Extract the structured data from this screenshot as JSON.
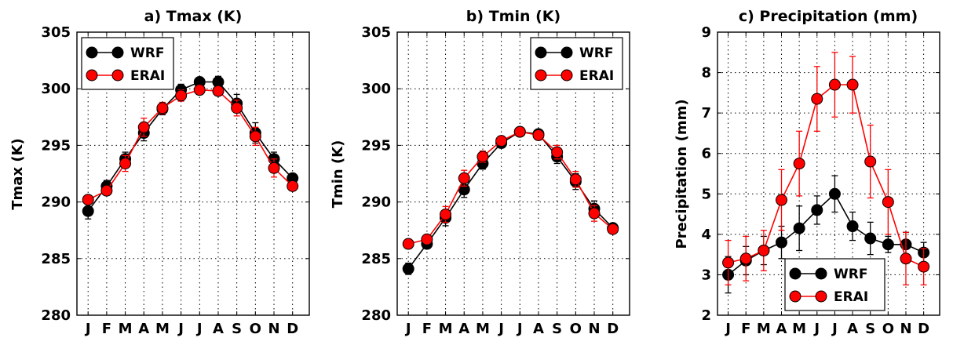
{
  "chart_data": [
    {
      "type": "line",
      "title": "a) Tmax (K)",
      "xlabel": "",
      "ylabel": "Tmax (K)",
      "categories": [
        "J",
        "F",
        "M",
        "A",
        "M",
        "J",
        "J",
        "A",
        "S",
        "O",
        "N",
        "D"
      ],
      "ylim": [
        280,
        305
      ],
      "yticks": [
        280,
        285,
        290,
        295,
        300,
        305
      ],
      "grid": true,
      "legend": "top-left",
      "series": [
        {
          "name": "WRF",
          "color": "#000000",
          "values": [
            289.2,
            291.4,
            293.8,
            296.1,
            298.2,
            299.9,
            300.6,
            300.6,
            298.7,
            296.1,
            293.8,
            292.1
          ],
          "err": [
            0.7,
            0.5,
            0.6,
            0.7,
            0.5,
            0.5,
            0.4,
            0.5,
            0.8,
            0.9,
            0.6,
            0.4
          ]
        },
        {
          "name": "ERAI",
          "color": "#ff0000",
          "values": [
            290.2,
            291.0,
            293.4,
            296.6,
            298.3,
            299.4,
            299.9,
            299.8,
            298.3,
            295.8,
            293.0,
            291.4
          ],
          "err": [
            0.3,
            0.4,
            0.7,
            0.8,
            0.5,
            0.5,
            0.4,
            0.4,
            0.7,
            0.8,
            0.8,
            0.4
          ]
        }
      ]
    },
    {
      "type": "line",
      "title": "b) Tmin (K)",
      "xlabel": "",
      "ylabel": "Tmin (K)",
      "categories": [
        "J",
        "F",
        "M",
        "A",
        "M",
        "J",
        "J",
        "A",
        "S",
        "O",
        "N",
        "D"
      ],
      "ylim": [
        280,
        305
      ],
      "yticks": [
        280,
        285,
        290,
        295,
        300,
        305
      ],
      "grid": true,
      "legend": "top-right",
      "series": [
        {
          "name": "WRF",
          "color": "#000000",
          "values": [
            284.1,
            286.3,
            288.6,
            291.1,
            293.4,
            295.2,
            296.2,
            296.0,
            294.0,
            291.8,
            289.4,
            287.7
          ],
          "err": [
            0.5,
            0.4,
            0.7,
            0.7,
            0.5,
            0.4,
            0.3,
            0.3,
            0.6,
            0.7,
            0.7,
            0.4
          ]
        },
        {
          "name": "ERAI",
          "color": "#ff0000",
          "values": [
            286.3,
            286.7,
            288.9,
            292.1,
            294.0,
            295.4,
            296.2,
            295.9,
            294.4,
            292.0,
            289.0,
            287.6
          ],
          "err": [
            0.3,
            0.3,
            0.7,
            0.7,
            0.5,
            0.4,
            0.3,
            0.3,
            0.6,
            0.7,
            0.7,
            0.3
          ]
        }
      ]
    },
    {
      "type": "line",
      "title": "c) Precipitation (mm)",
      "xlabel": "",
      "ylabel": "Precipitation (mm)",
      "categories": [
        "J",
        "F",
        "M",
        "A",
        "M",
        "J",
        "J",
        "A",
        "S",
        "O",
        "N",
        "D"
      ],
      "ylim": [
        2,
        9
      ],
      "yticks": [
        2,
        3,
        4,
        5,
        6,
        7,
        8,
        9
      ],
      "grid": true,
      "legend": "bottom-center",
      "series": [
        {
          "name": "WRF",
          "color": "#000000",
          "values": [
            3.0,
            3.35,
            3.6,
            3.8,
            4.15,
            4.6,
            5.0,
            4.2,
            3.9,
            3.75,
            3.75,
            3.55
          ],
          "err": [
            0.45,
            0.35,
            0.35,
            0.4,
            0.55,
            0.35,
            0.45,
            0.35,
            0.4,
            0.2,
            0.3,
            0.25
          ]
        },
        {
          "name": "ERAI",
          "color": "#ff0000",
          "values": [
            3.3,
            3.4,
            3.6,
            4.85,
            5.75,
            7.35,
            7.7,
            7.7,
            5.8,
            4.8,
            3.4,
            3.2
          ],
          "err": [
            0.55,
            0.55,
            0.5,
            0.75,
            0.8,
            0.8,
            0.8,
            0.7,
            0.9,
            0.8,
            0.65,
            0.45
          ]
        }
      ]
    }
  ]
}
